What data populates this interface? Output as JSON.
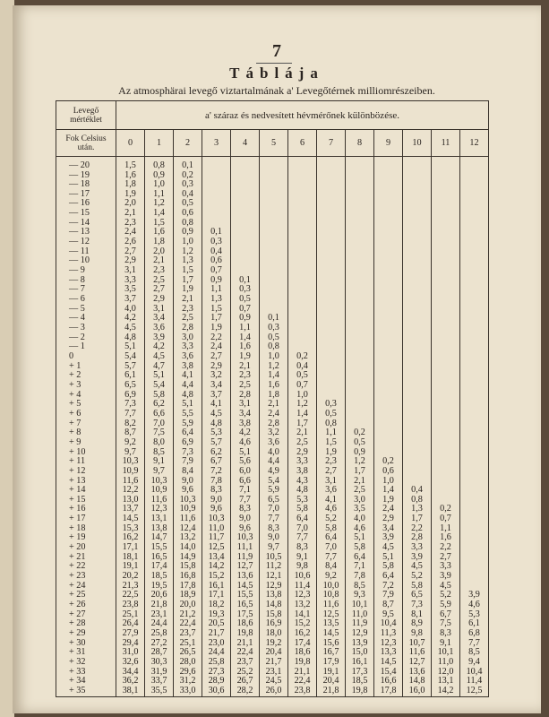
{
  "header": {
    "page_number": "7",
    "title": "Táblája",
    "subtitle": "Az atmosphärai levegő viztartalmának a' Levegőtérnek milliomrészeiben."
  },
  "table": {
    "corner_top": "Levegő mértéklet",
    "span_header": "a' száraz és nedvesített hévmérőnek különbözése.",
    "corner_bottom": "Fok Celsius után.",
    "columns": [
      "0",
      "1",
      "2",
      "3",
      "4",
      "5",
      "6",
      "7",
      "8",
      "9",
      "10",
      "11",
      "12"
    ],
    "rows": [
      [
        "— 20",
        "1,5",
        "0,8",
        "0,1"
      ],
      [
        "— 19",
        "1,6",
        "0,9",
        "0,2"
      ],
      [
        "— 18",
        "1,8",
        "1,0",
        "0,3"
      ],
      [
        "— 17",
        "1,9",
        "1,1",
        "0,4"
      ],
      [
        "— 16",
        "2,0",
        "1,2",
        "0,5"
      ],
      [
        "— 15",
        "2,1",
        "1,4",
        "0,6"
      ],
      [
        "— 14",
        "2,3",
        "1,5",
        "0,8"
      ],
      [
        "— 13",
        "2,4",
        "1,6",
        "0,9",
        "0,1"
      ],
      [
        "— 12",
        "2,6",
        "1,8",
        "1,0",
        "0,3"
      ],
      [
        "— 11",
        "2,7",
        "2,0",
        "1,2",
        "0,4"
      ],
      [
        "— 10",
        "2,9",
        "2,1",
        "1,3",
        "0,6"
      ],
      [
        "— 9",
        "3,1",
        "2,3",
        "1,5",
        "0,7"
      ],
      [
        "— 8",
        "3,3",
        "2,5",
        "1,7",
        "0,9",
        "0,1"
      ],
      [
        "— 7",
        "3,5",
        "2,7",
        "1,9",
        "1,1",
        "0,3"
      ],
      [
        "— 6",
        "3,7",
        "2,9",
        "2,1",
        "1,3",
        "0,5"
      ],
      [
        "— 5",
        "4,0",
        "3,1",
        "2,3",
        "1,5",
        "0,7"
      ],
      [
        "— 4",
        "4,2",
        "3,4",
        "2,5",
        "1,7",
        "0,9",
        "0,1"
      ],
      [
        "— 3",
        "4,5",
        "3,6",
        "2,8",
        "1,9",
        "1,1",
        "0,3"
      ],
      [
        "— 2",
        "4,8",
        "3,9",
        "3,0",
        "2,2",
        "1,4",
        "0,5"
      ],
      [
        "— 1",
        "5,1",
        "4,2",
        "3,3",
        "2,4",
        "1,6",
        "0,8"
      ],
      [
        "0",
        "5,4",
        "4,5",
        "3,6",
        "2,7",
        "1,9",
        "1,0",
        "0,2"
      ],
      [
        "+ 1",
        "5,7",
        "4,7",
        "3,8",
        "2,9",
        "2,1",
        "1,2",
        "0,4"
      ],
      [
        "+ 2",
        "6,1",
        "5,1",
        "4,1",
        "3,2",
        "2,3",
        "1,4",
        "0,5"
      ],
      [
        "+ 3",
        "6,5",
        "5,4",
        "4,4",
        "3,4",
        "2,5",
        "1,6",
        "0,7"
      ],
      [
        "+ 4",
        "6,9",
        "5,8",
        "4,8",
        "3,7",
        "2,8",
        "1,8",
        "1,0"
      ],
      [
        "+ 5",
        "7,3",
        "6,2",
        "5,1",
        "4,1",
        "3,1",
        "2,1",
        "1,2",
        "0,3"
      ],
      [
        "+ 6",
        "7,7",
        "6,6",
        "5,5",
        "4,5",
        "3,4",
        "2,4",
        "1,4",
        "0,5"
      ],
      [
        "+ 7",
        "8,2",
        "7,0",
        "5,9",
        "4,8",
        "3,8",
        "2,8",
        "1,7",
        "0,8"
      ],
      [
        "+ 8",
        "8,7",
        "7,5",
        "6,4",
        "5,3",
        "4,2",
        "3,2",
        "2,1",
        "1,1",
        "0,2"
      ],
      [
        "+ 9",
        "9,2",
        "8,0",
        "6,9",
        "5,7",
        "4,6",
        "3,6",
        "2,5",
        "1,5",
        "0,5"
      ],
      [
        "+ 10",
        "9,7",
        "8,5",
        "7,3",
        "6,2",
        "5,1",
        "4,0",
        "2,9",
        "1,9",
        "0,9"
      ],
      [
        "+ 11",
        "10,3",
        "9,1",
        "7,9",
        "6,7",
        "5,6",
        "4,4",
        "3,3",
        "2,3",
        "1,2",
        "0,2"
      ],
      [
        "+ 12",
        "10,9",
        "9,7",
        "8,4",
        "7,2",
        "6,0",
        "4,9",
        "3,8",
        "2,7",
        "1,7",
        "0,6"
      ],
      [
        "+ 13",
        "11,6",
        "10,3",
        "9,0",
        "7,8",
        "6,6",
        "5,4",
        "4,3",
        "3,1",
        "2,1",
        "1,0"
      ],
      [
        "+ 14",
        "12,2",
        "10,9",
        "9,6",
        "8,3",
        "7,1",
        "5,9",
        "4,8",
        "3,6",
        "2,5",
        "1,4",
        "0,4"
      ],
      [
        "+ 15",
        "13,0",
        "11,6",
        "10,3",
        "9,0",
        "7,7",
        "6,5",
        "5,3",
        "4,1",
        "3,0",
        "1,9",
        "0,8"
      ],
      [
        "+ 16",
        "13,7",
        "12,3",
        "10,9",
        "9,6",
        "8,3",
        "7,0",
        "5,8",
        "4,6",
        "3,5",
        "2,4",
        "1,3",
        "0,2"
      ],
      [
        "+ 17",
        "14,5",
        "13,1",
        "11,6",
        "10,3",
        "9,0",
        "7,7",
        "6,4",
        "5,2",
        "4,0",
        "2,9",
        "1,7",
        "0,7"
      ],
      [
        "+ 18",
        "15,3",
        "13,8",
        "12,4",
        "11,0",
        "9,6",
        "8,3",
        "7,0",
        "5,8",
        "4,6",
        "3,4",
        "2,2",
        "1,1"
      ],
      [
        "+ 19",
        "16,2",
        "14,7",
        "13,2",
        "11,7",
        "10,3",
        "9,0",
        "7,7",
        "6,4",
        "5,1",
        "3,9",
        "2,8",
        "1,6"
      ],
      [
        "+ 20",
        "17,1",
        "15,5",
        "14,0",
        "12,5",
        "11,1",
        "9,7",
        "8,3",
        "7,0",
        "5,8",
        "4,5",
        "3,3",
        "2,2"
      ],
      [
        "+ 21",
        "18,1",
        "16,5",
        "14,9",
        "13,4",
        "11,9",
        "10,5",
        "9,1",
        "7,7",
        "6,4",
        "5,1",
        "3,9",
        "2,7"
      ],
      [
        "+ 22",
        "19,1",
        "17,4",
        "15,8",
        "14,2",
        "12,7",
        "11,2",
        "9,8",
        "8,4",
        "7,1",
        "5,8",
        "4,5",
        "3,3"
      ],
      [
        "+ 23",
        "20,2",
        "18,5",
        "16,8",
        "15,2",
        "13,6",
        "12,1",
        "10,6",
        "9,2",
        "7,8",
        "6,4",
        "5,2",
        "3,9"
      ],
      [
        "+ 24",
        "21,3",
        "19,5",
        "17,8",
        "16,1",
        "14,5",
        "12,9",
        "11,4",
        "10,0",
        "8,5",
        "7,2",
        "5,8",
        "4,5"
      ],
      [
        "+ 25",
        "22,5",
        "20,6",
        "18,9",
        "17,1",
        "15,5",
        "13,8",
        "12,3",
        "10,8",
        "9,3",
        "7,9",
        "6,5",
        "5,2",
        "3,9"
      ],
      [
        "+ 26",
        "23,8",
        "21,8",
        "20,0",
        "18,2",
        "16,5",
        "14,8",
        "13,2",
        "11,6",
        "10,1",
        "8,7",
        "7,3",
        "5,9",
        "4,6"
      ],
      [
        "+ 27",
        "25,1",
        "23,1",
        "21,2",
        "19,3",
        "17,5",
        "15,8",
        "14,1",
        "12,5",
        "11,0",
        "9,5",
        "8,1",
        "6,7",
        "5,3"
      ],
      [
        "+ 28",
        "26,4",
        "24,4",
        "22,4",
        "20,5",
        "18,6",
        "16,9",
        "15,2",
        "13,5",
        "11,9",
        "10,4",
        "8,9",
        "7,5",
        "6,1"
      ],
      [
        "+ 29",
        "27,9",
        "25,8",
        "23,7",
        "21,7",
        "19,8",
        "18,0",
        "16,2",
        "14,5",
        "12,9",
        "11,3",
        "9,8",
        "8,3",
        "6,8"
      ],
      [
        "+ 30",
        "29,4",
        "27,2",
        "25,1",
        "23,0",
        "21,1",
        "19,2",
        "17,4",
        "15,6",
        "13,9",
        "12,3",
        "10,7",
        "9,1",
        "7,7"
      ],
      [
        "+ 31",
        "31,0",
        "28,7",
        "26,5",
        "24,4",
        "22,4",
        "20,4",
        "18,6",
        "16,7",
        "15,0",
        "13,3",
        "11,6",
        "10,1",
        "8,5"
      ],
      [
        "+ 32",
        "32,6",
        "30,3",
        "28,0",
        "25,8",
        "23,7",
        "21,7",
        "19,8",
        "17,9",
        "16,1",
        "14,5",
        "12,7",
        "11,0",
        "9,4"
      ],
      [
        "+ 33",
        "34,4",
        "31,9",
        "29,6",
        "27,3",
        "25,2",
        "23,1",
        "21,1",
        "19,1",
        "17,3",
        "15,4",
        "13,6",
        "12,0",
        "10,4"
      ],
      [
        "+ 34",
        "36,2",
        "33,7",
        "31,2",
        "28,9",
        "26,7",
        "24,5",
        "22,4",
        "20,4",
        "18,5",
        "16,6",
        "14,8",
        "13,1",
        "11,4"
      ],
      [
        "+ 35",
        "38,1",
        "35,5",
        "33,0",
        "30,6",
        "28,2",
        "26,0",
        "23,8",
        "21,8",
        "19,8",
        "17,8",
        "16,0",
        "14,2",
        "12,5"
      ]
    ]
  }
}
